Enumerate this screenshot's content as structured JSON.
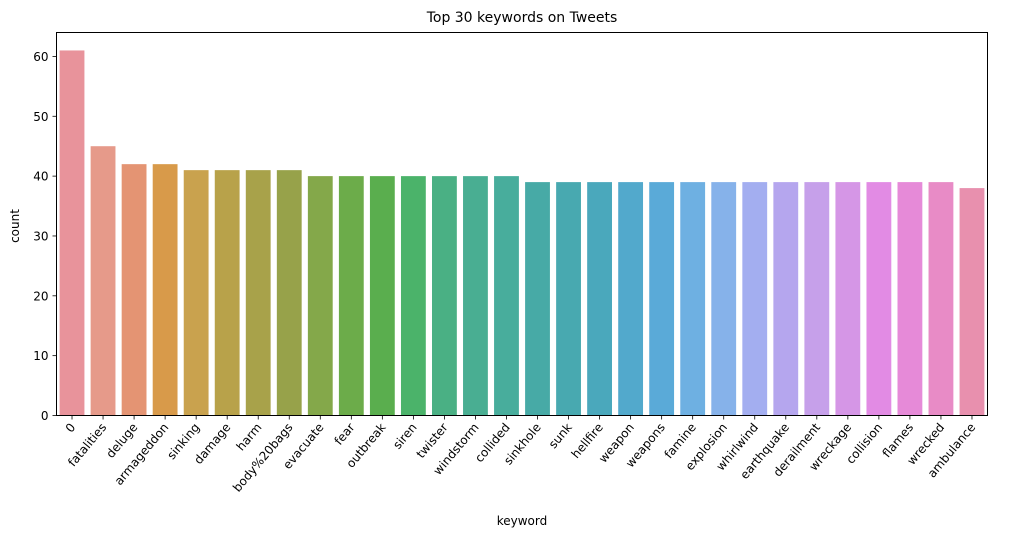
{
  "chart_data": {
    "type": "bar",
    "title": "Top 30 keywords on Tweets",
    "xlabel": "keyword",
    "ylabel": "count",
    "ylim": [
      0,
      64
    ],
    "yticks": [
      0,
      10,
      20,
      30,
      40,
      50,
      60
    ],
    "grid": false,
    "categories": [
      "0",
      "fatalities",
      "deluge",
      "armageddon",
      "sinking",
      "damage",
      "harm",
      "body%20bags",
      "evacuate",
      "fear",
      "outbreak",
      "siren",
      "twister",
      "windstorm",
      "collided",
      "sinkhole",
      "sunk",
      "hellfire",
      "weapon",
      "weapons",
      "famine",
      "explosion",
      "whirlwind",
      "earthquake",
      "derailment",
      "wreckage",
      "collision",
      "flames",
      "wrecked",
      "ambulance"
    ],
    "values": [
      61,
      45,
      42,
      42,
      41,
      41,
      41,
      41,
      40,
      40,
      40,
      40,
      40,
      40,
      40,
      39,
      39,
      39,
      39,
      39,
      39,
      39,
      39,
      39,
      39,
      39,
      39,
      39,
      39,
      38
    ],
    "colors": [
      "#e8939b",
      "#e69a8a",
      "#e49473",
      "#d89a4a",
      "#c9a24e",
      "#b8a24a",
      "#a8a24a",
      "#97a24a",
      "#84a84a",
      "#6cac4a",
      "#5aae4e",
      "#4bb36a",
      "#4ab084",
      "#49ae92",
      "#48ad9c",
      "#47aaa6",
      "#48a9b0",
      "#4aa8bc",
      "#52a9cc",
      "#5aaad8",
      "#6eb0e2",
      "#86b2ea",
      "#a3aef0",
      "#b5a6ee",
      "#c6a0ea",
      "#d596e6",
      "#e28be4",
      "#e68ad8",
      "#e88bc6",
      "#e890ae"
    ]
  }
}
